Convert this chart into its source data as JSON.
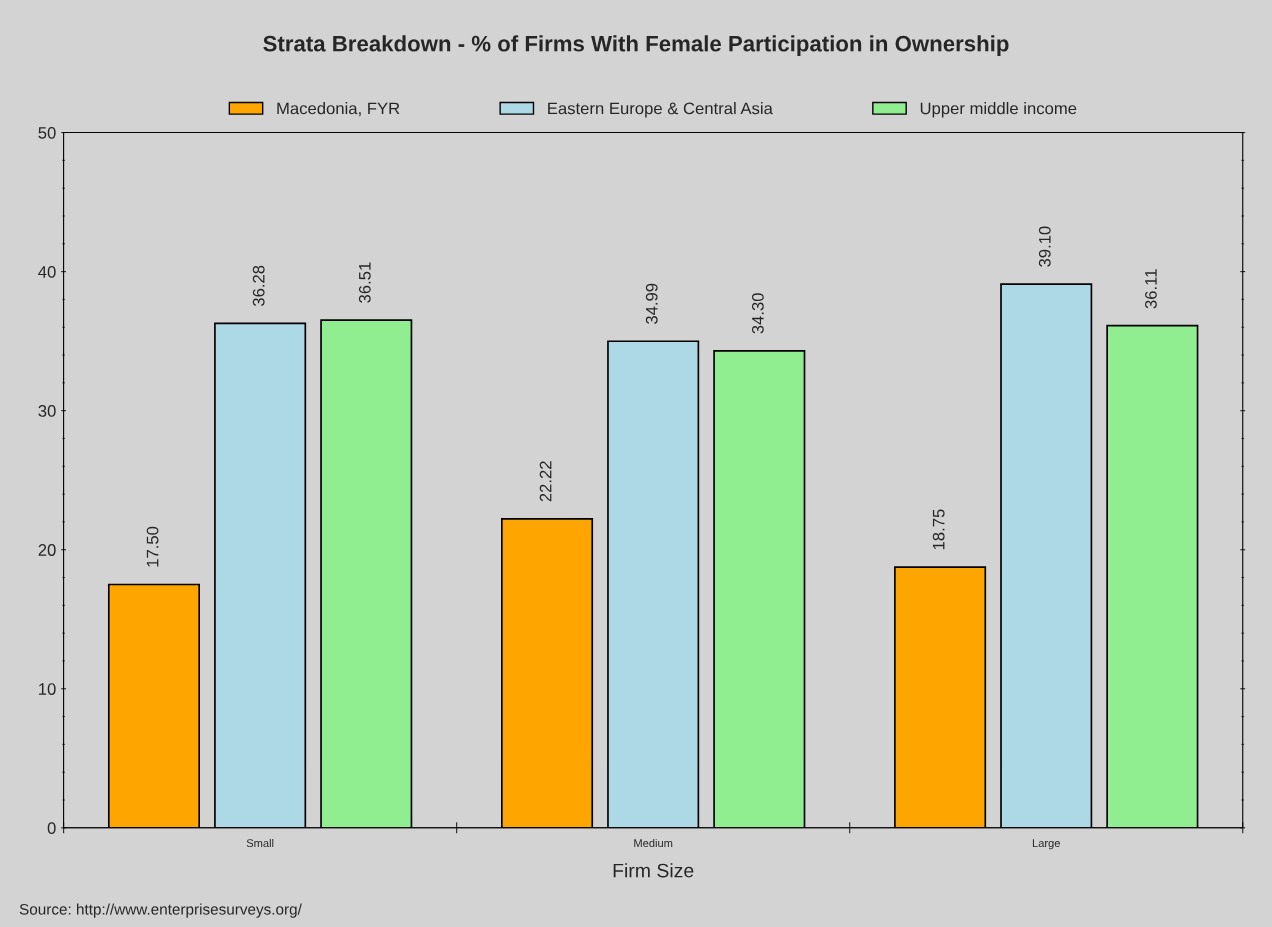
{
  "chart_data": {
    "type": "bar",
    "title": "Strata Breakdown - % of Firms With Female Participation in Ownership",
    "xlabel": "Firm Size",
    "categories": [
      "Small",
      "Medium",
      "Large"
    ],
    "series": [
      {
        "name": "Macedonia, FYR",
        "color": "#ffa500",
        "values": [
          17.5,
          22.22,
          18.75
        ],
        "value_labels": [
          "17.50",
          "22.22",
          "18.75"
        ]
      },
      {
        "name": "Eastern Europe & Central Asia",
        "color": "#add8e6",
        "values": [
          36.28,
          34.99,
          39.1
        ],
        "value_labels": [
          "36.28",
          "34.99",
          "39.10"
        ]
      },
      {
        "name": "Upper middle income",
        "color": "#90ee90",
        "values": [
          36.51,
          34.3,
          36.11
        ],
        "value_labels": [
          "36.51",
          "34.30",
          "36.11"
        ]
      }
    ],
    "ylim": [
      0,
      50
    ],
    "yticks": [
      0,
      10,
      20,
      30,
      40,
      50
    ],
    "legend": "top",
    "grid": false,
    "annotations": [
      "Source: http://www.enterprisesurveys.org/"
    ]
  }
}
